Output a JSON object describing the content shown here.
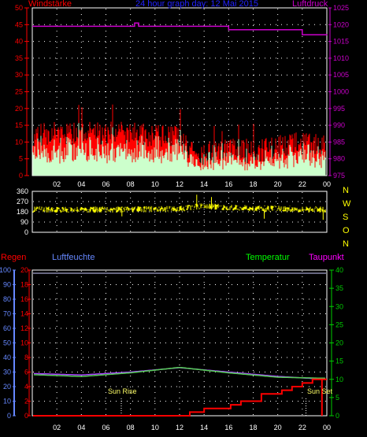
{
  "wind_chart": {
    "title": "24 hour graph day: 12 Mai 2015",
    "left_label": "Windstärke",
    "right_label": "Luftdruck",
    "left_ticks": [
      "50",
      "45",
      "40",
      "35",
      "30",
      "25",
      "20",
      "15",
      "10",
      "5",
      "0"
    ],
    "right_ticks": [
      "1025",
      "1020",
      "1015",
      "1010",
      "1005",
      "1000",
      "995",
      "990",
      "985",
      "980",
      "975"
    ],
    "x_ticks": [
      "02",
      "04",
      "06",
      "08",
      "10",
      "12",
      "14",
      "16",
      "18",
      "20",
      "22",
      "00"
    ]
  },
  "dir_chart": {
    "left_ticks": [
      "360",
      "270",
      "180",
      "90",
      "0"
    ],
    "compass": [
      "N",
      "W",
      "S",
      "O",
      "N"
    ]
  },
  "temp_chart": {
    "regen_label": "Regen",
    "humidity_label": "Luftfeuchte",
    "temp_label": "Temperatur",
    "dew_label": "Taupunkt",
    "humidity_ticks": [
      "100",
      "90",
      "80",
      "70",
      "60",
      "50",
      "40",
      "30",
      "20",
      "10",
      "0"
    ],
    "rain_ticks": [
      "20",
      "18",
      "16",
      "14",
      "12",
      "10",
      "8",
      "6",
      "4",
      "2",
      "0"
    ],
    "right_ticks": [
      "40",
      "35",
      "30",
      "25",
      "20",
      "15",
      "10",
      "5",
      "0"
    ],
    "sunrise_label": "Sun Rise",
    "sunset_label": "Sun Set",
    "x_ticks": [
      "02",
      "04",
      "06",
      "08",
      "10",
      "12",
      "14",
      "16",
      "18",
      "20",
      "22",
      "00"
    ]
  },
  "colors": {
    "wind_gust": "#ff0000",
    "wind_avg": "#ccffcc",
    "pressure": "#cc00cc",
    "direction": "#ffff00",
    "humidity": "#aa44ff",
    "temperature": "#55cc55",
    "rain": "#ff0000",
    "left_axis": "#ff0000",
    "humidity_axis": "#6688ff",
    "green_axis": "#00cc00"
  },
  "chart_data": [
    {
      "type": "area",
      "series": [
        {
          "name": "Windstärke",
          "x": [
            "00:00",
            "02:00",
            "04:00",
            "06:00",
            "08:00",
            "10:00",
            "12:00",
            "13:00",
            "14:00",
            "16:00",
            "18:00",
            "20:00",
            "22:00",
            "24:00"
          ],
          "values": [
            11,
            12,
            12,
            12,
            12,
            11,
            11,
            6,
            6,
            7,
            6,
            8,
            9,
            8
          ]
        },
        {
          "name": "Luftdruck",
          "x": [
            "00:00",
            "08:00",
            "08:20",
            "08:40",
            "13:40",
            "16:00",
            "22:00",
            "24:00"
          ],
          "values": [
            1019.5,
            1019.5,
            1020.5,
            1019.5,
            1019.5,
            1018.5,
            1017.0,
            1016.8
          ]
        }
      ],
      "ylim": [
        0,
        50
      ],
      "ylim_right": [
        975,
        1025
      ]
    },
    {
      "type": "scatter",
      "series": [
        {
          "x": [
            "00:00",
            "06:00",
            "12:00",
            "13:30",
            "18:00",
            "24:00"
          ],
          "values": [
            200,
            200,
            205,
            230,
            210,
            200
          ]
        }
      ],
      "ylim": [
        0,
        360
      ]
    },
    {
      "type": "line",
      "series": [
        {
          "name": "Luftfeuchte",
          "x": [
            "00:00",
            "04:00",
            "08:00",
            "12:00",
            "16:00",
            "20:00",
            "24:00"
          ],
          "values": [
            29,
            28,
            30,
            33,
            30,
            27,
            25
          ]
        },
        {
          "name": "Temperatur",
          "x": [
            "00:00",
            "04:00",
            "08:00",
            "12:00",
            "16:00",
            "20:00",
            "24:00"
          ],
          "values": [
            11.5,
            11.0,
            12.0,
            13.5,
            12.0,
            10.8,
            10.5
          ]
        },
        {
          "name": "Regen",
          "x": [
            "00:00",
            "12:40",
            "12:50",
            "14:00",
            "16:10",
            "17:00",
            "18:40",
            "20:20",
            "21:10",
            "22:00",
            "22:50",
            "24:00"
          ],
          "values": [
            0,
            0,
            0.5,
            1,
            1.5,
            2,
            3,
            3.5,
            4,
            4.5,
            5,
            5
          ]
        }
      ],
      "ylim": [
        0,
        100
      ],
      "ylim_right": [
        0,
        40
      ],
      "ylim_rain": [
        0,
        20
      ]
    }
  ]
}
